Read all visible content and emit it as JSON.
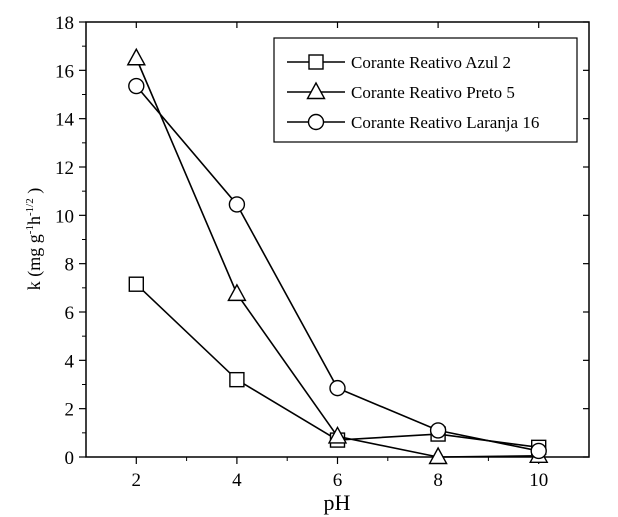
{
  "chart_data": {
    "type": "line",
    "title": "",
    "xlabel": "pH",
    "ylabel": {
      "base": "k (mg g",
      "sup1": "-1",
      "mid": "h",
      "sup2": "-1/2",
      "end": " )"
    },
    "x": [
      2,
      4,
      6,
      8,
      10
    ],
    "xlim": [
      1,
      11
    ],
    "ylim": [
      0,
      18
    ],
    "xticks": [
      2,
      4,
      6,
      8,
      10
    ],
    "yticks": [
      0,
      2,
      4,
      6,
      8,
      10,
      12,
      14,
      16,
      18
    ],
    "grid": false,
    "legend_position": "top-right",
    "series": [
      {
        "name": "Corante Reativo Azul 2",
        "marker": "square",
        "values": [
          7.15,
          3.2,
          0.7,
          0.95,
          0.4
        ]
      },
      {
        "name": "Corante Reativo Preto 5",
        "marker": "triangle",
        "values": [
          16.5,
          6.75,
          0.85,
          0.0,
          0.05
        ]
      },
      {
        "name": "Corante Reativo Laranja 16",
        "marker": "circle",
        "values": [
          15.35,
          10.45,
          2.85,
          1.1,
          0.25
        ]
      }
    ],
    "colors": {
      "line": "#000000",
      "marker_fill": "#ffffff"
    }
  }
}
